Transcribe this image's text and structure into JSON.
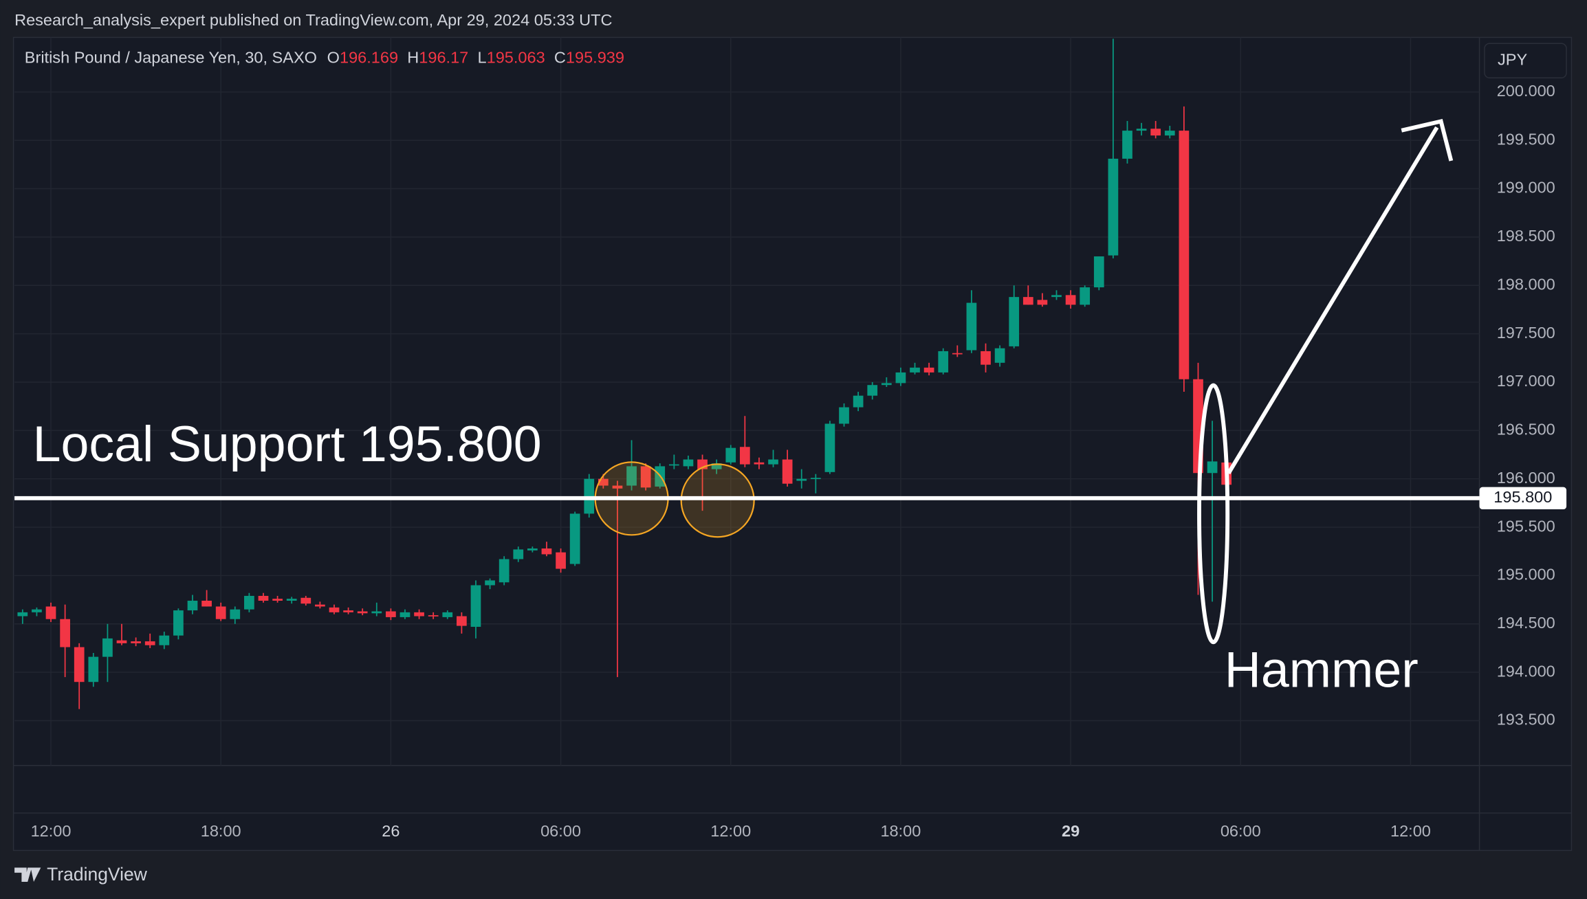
{
  "header": {
    "publisher": "Research_analysis_expert published on TradingView.com, Apr 29, 2024 05:33 UTC",
    "brand": "TradingView"
  },
  "chart_data": {
    "type": "candlestick",
    "title": "British Pound / Japanese Yen, 30, SAXO",
    "ohlc_labels": [
      "O",
      "H",
      "L",
      "C"
    ],
    "currency": "JPY",
    "up_color": "#089981",
    "down_color": "#f23645",
    "grid": true,
    "x": [
      -2,
      -1,
      0,
      1,
      2,
      3,
      4,
      5,
      6,
      7,
      8,
      9,
      10,
      11,
      12,
      13,
      14,
      15,
      16,
      17,
      18,
      19,
      20,
      21,
      22,
      23,
      24,
      25,
      26,
      27,
      28,
      29,
      30,
      31,
      32,
      33,
      34,
      35,
      36,
      37,
      38,
      39,
      40,
      41,
      42,
      43,
      44,
      45,
      46,
      47,
      48,
      49,
      50,
      51,
      52,
      53,
      54,
      55,
      56,
      57,
      58,
      59,
      60,
      61,
      62,
      63,
      64,
      65,
      66,
      67,
      68,
      69,
      70,
      71,
      72,
      73,
      74,
      75,
      76,
      77,
      78,
      79,
      80,
      81,
      82,
      83
    ],
    "open": [
      194.58,
      194.62,
      194.68,
      194.55,
      194.26,
      193.9,
      194.16,
      194.33,
      194.32,
      194.32,
      194.28,
      194.38,
      194.64,
      194.74,
      194.68,
      194.55,
      194.65,
      194.79,
      194.76,
      194.74,
      194.77,
      194.7,
      194.67,
      194.64,
      194.63,
      194.61,
      194.63,
      194.57,
      194.62,
      194.59,
      194.57,
      194.58,
      194.47,
      194.9,
      194.93,
      195.17,
      195.26,
      195.28,
      195.24,
      195.12,
      195.64,
      196.0,
      195.93,
      195.93,
      196.13,
      195.92,
      196.14,
      196.13,
      196.2,
      196.1,
      196.17,
      196.33,
      196.17,
      196.15,
      196.2,
      195.98,
      196.0,
      196.07,
      196.57,
      196.74,
      196.86,
      196.97,
      196.99,
      197.1,
      197.15,
      197.1,
      197.3,
      197.33,
      197.32,
      197.2,
      197.37,
      197.88,
      197.85,
      197.88,
      197.9,
      197.8,
      197.98,
      198.31,
      199.31,
      199.6,
      199.62,
      199.55,
      199.6,
      197.03,
      196.06,
      196.169
    ],
    "high": [
      194.65,
      194.67,
      194.72,
      194.7,
      194.3,
      194.2,
      194.5,
      194.5,
      194.36,
      194.4,
      194.42,
      194.66,
      194.8,
      194.85,
      194.72,
      194.68,
      194.82,
      194.82,
      194.79,
      194.78,
      194.79,
      194.73,
      194.7,
      194.67,
      194.66,
      194.72,
      194.66,
      194.65,
      194.65,
      194.62,
      194.64,
      194.62,
      194.95,
      194.97,
      195.2,
      195.3,
      195.3,
      195.35,
      195.28,
      195.66,
      196.05,
      196.05,
      195.98,
      196.4,
      196.16,
      196.16,
      196.25,
      196.24,
      196.25,
      196.2,
      196.35,
      196.65,
      196.22,
      196.3,
      196.3,
      196.1,
      196.05,
      196.6,
      196.78,
      196.9,
      197.0,
      197.05,
      197.15,
      197.2,
      197.2,
      197.35,
      197.38,
      197.95,
      197.4,
      197.38,
      198.0,
      198.0,
      197.92,
      197.95,
      197.95,
      198.0,
      198.3,
      200.55,
      199.7,
      199.68,
      199.7,
      199.65,
      199.85,
      197.2,
      196.6,
      196.17
    ],
    "low": [
      194.5,
      194.58,
      194.52,
      193.95,
      193.62,
      193.85,
      193.9,
      194.28,
      194.27,
      194.25,
      194.24,
      194.34,
      194.6,
      194.68,
      194.53,
      194.5,
      194.62,
      194.72,
      194.72,
      194.71,
      194.69,
      194.66,
      194.6,
      194.6,
      194.59,
      194.58,
      194.54,
      194.55,
      194.55,
      194.55,
      194.55,
      194.4,
      194.35,
      194.86,
      194.9,
      195.14,
      195.24,
      195.2,
      195.03,
      195.1,
      195.6,
      195.9,
      193.95,
      195.88,
      195.88,
      195.9,
      196.1,
      196.1,
      195.67,
      196.05,
      196.15,
      196.12,
      196.1,
      196.12,
      195.92,
      195.9,
      195.85,
      196.05,
      196.54,
      196.7,
      196.82,
      196.95,
      196.96,
      197.08,
      197.07,
      197.08,
      197.26,
      197.3,
      197.1,
      197.16,
      197.35,
      197.8,
      197.78,
      197.85,
      197.76,
      197.78,
      197.95,
      198.28,
      199.26,
      199.55,
      199.52,
      199.52,
      196.9,
      194.8,
      194.73,
      195.063
    ],
    "close": [
      194.62,
      194.65,
      194.55,
      194.26,
      193.9,
      194.16,
      194.35,
      194.3,
      194.3,
      194.28,
      194.38,
      194.64,
      194.74,
      194.68,
      194.55,
      194.65,
      194.79,
      194.74,
      194.74,
      194.76,
      194.71,
      194.68,
      194.62,
      194.62,
      194.61,
      194.63,
      194.57,
      194.62,
      194.58,
      194.58,
      194.62,
      194.48,
      194.9,
      194.95,
      195.17,
      195.27,
      195.28,
      195.22,
      195.07,
      195.64,
      196.0,
      195.93,
      195.9,
      196.13,
      195.91,
      196.13,
      196.15,
      196.2,
      196.1,
      196.16,
      196.32,
      196.15,
      196.15,
      196.2,
      195.95,
      196.0,
      196.01,
      196.57,
      196.74,
      196.86,
      196.97,
      196.99,
      197.1,
      197.15,
      197.1,
      197.32,
      197.29,
      197.82,
      197.18,
      197.35,
      197.88,
      197.8,
      197.8,
      197.9,
      197.8,
      197.98,
      198.3,
      199.31,
      199.6,
      199.62,
      199.55,
      199.6,
      197.03,
      196.06,
      196.18,
      195.939
    ],
    "xlim": [
      -2.57,
      100.86
    ],
    "xticks": [
      {
        "value": 0,
        "label": "12:00"
      },
      {
        "value": 12,
        "label": "18:00"
      },
      {
        "value": 24,
        "label": "26"
      },
      {
        "value": 36,
        "label": "06:00"
      },
      {
        "value": 48,
        "label": "12:00"
      },
      {
        "value": 60,
        "label": "18:00"
      },
      {
        "value": 72,
        "label": "29"
      },
      {
        "value": 84,
        "label": "06:00"
      },
      {
        "value": 96,
        "label": "12:00"
      }
    ],
    "ylim": [
      193.036,
      200.564
    ],
    "yticks": [
      {
        "value": 193.5,
        "label": "193.500"
      },
      {
        "value": 194,
        "label": "194.000"
      },
      {
        "value": 194.5,
        "label": "194.500"
      },
      {
        "value": 195,
        "label": "195.000"
      },
      {
        "value": 195.5,
        "label": "195.500"
      },
      {
        "value": 196,
        "label": "196.000"
      },
      {
        "value": 196.5,
        "label": "196.500"
      },
      {
        "value": 197,
        "label": "197.000"
      },
      {
        "value": 197.5,
        "label": "197.500"
      },
      {
        "value": 198,
        "label": "198.000"
      },
      {
        "value": 198.5,
        "label": "198.500"
      },
      {
        "value": 199,
        "label": "199.000"
      },
      {
        "value": 199.5,
        "label": "199.500"
      },
      {
        "value": 200,
        "label": "200.000"
      }
    ],
    "support": {
      "value": 195.8,
      "label": "195.800",
      "text": "Local Support 195.800"
    },
    "pattern_label": "Hammer"
  }
}
